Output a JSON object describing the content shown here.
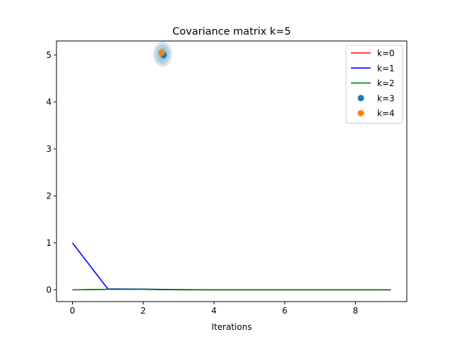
{
  "chart_data": {
    "type": "line",
    "title": "Covariance matrix k=5",
    "xlabel": "Iterations",
    "ylabel": "",
    "xlim": [
      -0.45,
      9.45
    ],
    "ylim": [
      -0.25,
      5.3
    ],
    "xticks": [
      0,
      2,
      4,
      6,
      8
    ],
    "yticks": [
      0,
      1,
      2,
      3,
      4,
      5
    ],
    "grid": false,
    "legend_position": "upper right",
    "series": [
      {
        "name": "k=0",
        "kind": "line",
        "color": "#ff0000",
        "x": [
          0,
          1,
          2,
          3,
          4,
          5,
          6,
          7,
          8,
          9
        ],
        "y": [
          0,
          0.01,
          0.01,
          0,
          0,
          0,
          0,
          0,
          0,
          0
        ]
      },
      {
        "name": "k=1",
        "kind": "line",
        "color": "#0000ff",
        "x": [
          0,
          1,
          2,
          3,
          4,
          5,
          6,
          7,
          8,
          9
        ],
        "y": [
          1,
          0.02,
          0.015,
          0.005,
          0,
          0,
          0,
          0,
          0,
          0
        ]
      },
      {
        "name": "k=2",
        "kind": "line",
        "color": "#008000",
        "x": [
          0,
          1,
          2,
          3,
          4,
          5,
          6,
          7,
          8,
          9
        ],
        "y": [
          0,
          0.01,
          0.01,
          0,
          0,
          0,
          0,
          0,
          0,
          0
        ]
      },
      {
        "name": "k=3",
        "kind": "scatter",
        "color": "#1f77b4",
        "points": [
          [
            2.58,
            5.0
          ]
        ],
        "ellipses": [
          {
            "cx": 2.55,
            "cy": 5.02,
            "rx": 0.27,
            "ry": 0.27,
            "opacity": 0.18
          },
          {
            "cx": 2.55,
            "cy": 5.02,
            "rx": 0.2,
            "ry": 0.21,
            "opacity": 0.2
          },
          {
            "cx": 2.55,
            "cy": 5.02,
            "rx": 0.12,
            "ry": 0.13,
            "opacity": 0.22
          }
        ]
      },
      {
        "name": "k=4",
        "kind": "scatter",
        "color": "#ff7f0e",
        "points": [
          [
            2.52,
            5.05
          ]
        ]
      }
    ]
  }
}
